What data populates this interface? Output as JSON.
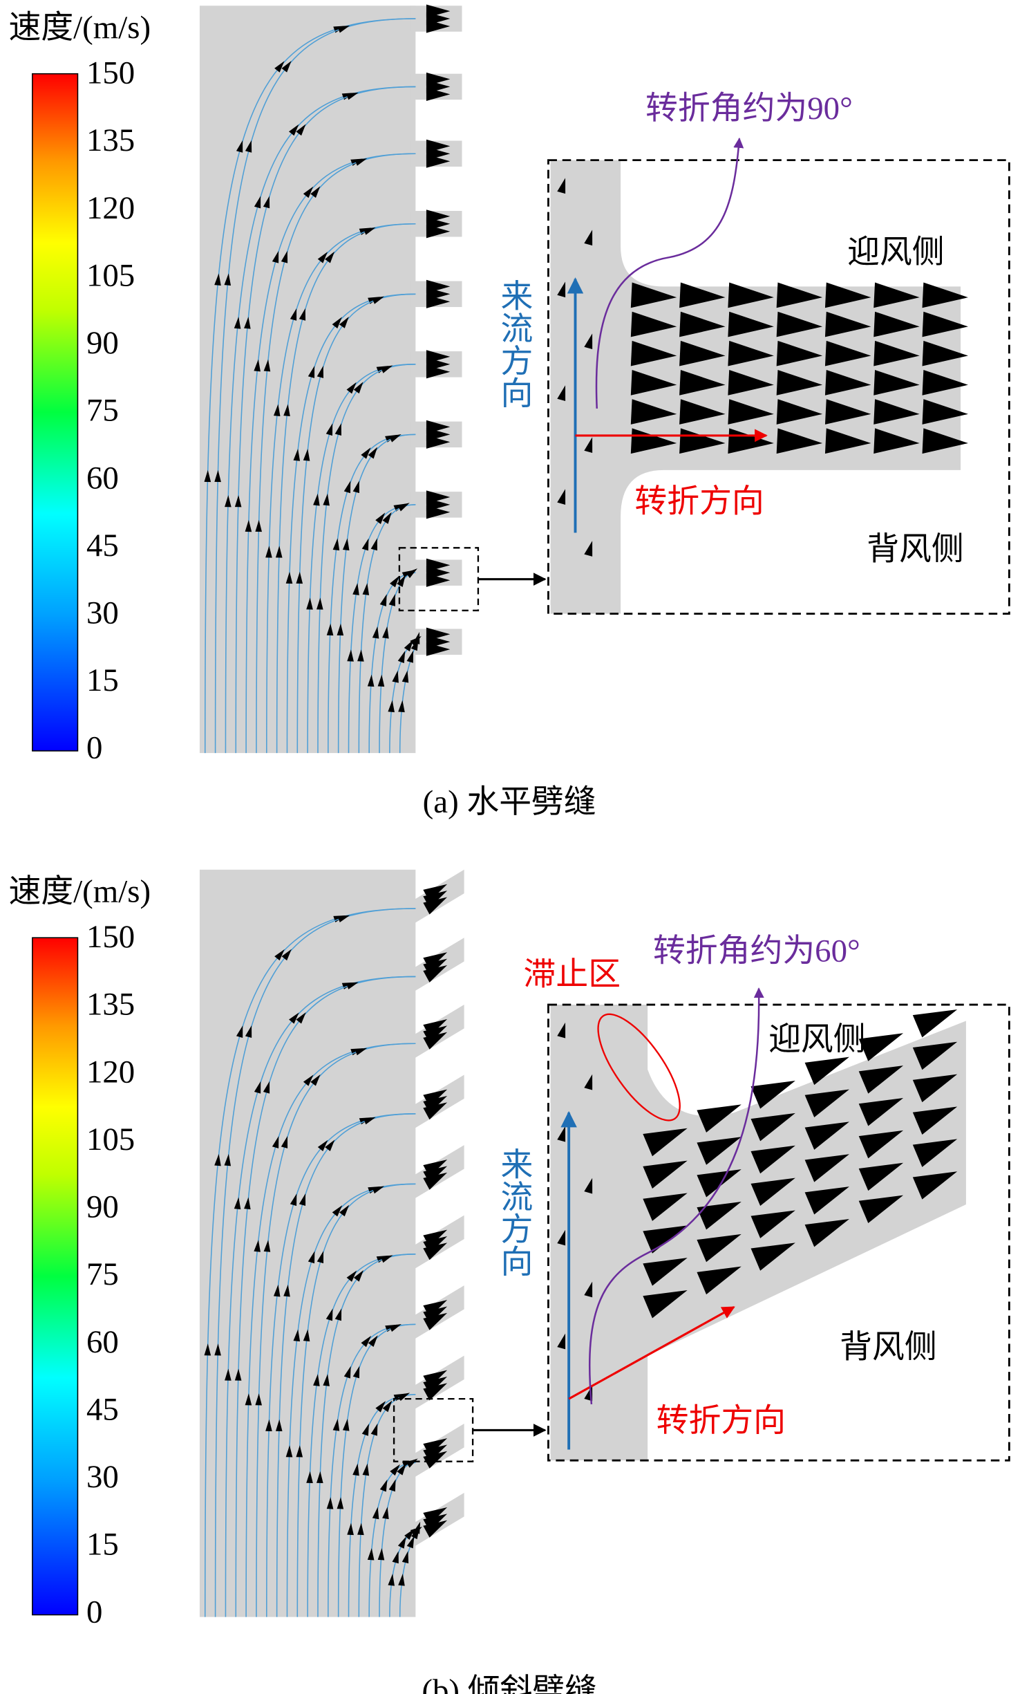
{
  "panels": [
    {
      "colorbar_title": "速度/(m/s)",
      "colorbar_ticks": [
        150,
        135,
        120,
        105,
        90,
        75,
        60,
        45,
        30,
        15,
        0
      ],
      "turn_angle": "转折角约为90°",
      "windward": "迎风侧",
      "leeward": "背风侧",
      "inflow": "来流方向",
      "turn_direction": "转折方向",
      "caption": "(a) 水平劈缝"
    },
    {
      "colorbar_title": "速度/(m/s)",
      "colorbar_ticks": [
        150,
        135,
        120,
        105,
        90,
        75,
        60,
        45,
        30,
        15,
        0
      ],
      "stagnation": "滞止区",
      "turn_angle": "转折角约为60°",
      "windward": "迎风侧",
      "leeward": "背风侧",
      "inflow": "来流方向",
      "turn_direction": "转折方向",
      "caption": "(b) 倾斜劈缝"
    }
  ]
}
